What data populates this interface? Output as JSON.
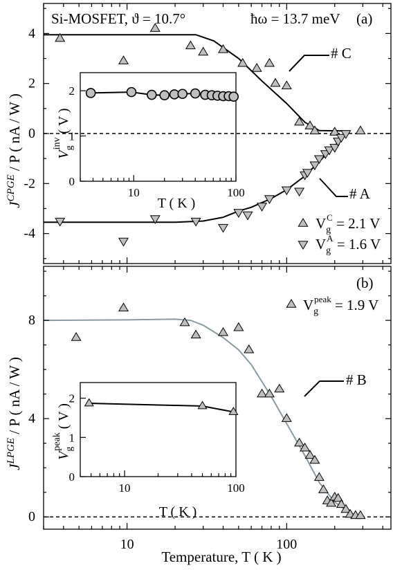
{
  "chart_data": [
    {
      "id": "a",
      "type": "scatter",
      "panel_label": "(a)",
      "title_left": "Si-MOSFET, ϑ = 10.7°",
      "title_right": "ħω = 13.7 meV",
      "ylabel_main": "J",
      "ylabel_super": "CPGE",
      "ylabel_rest": " / P  ( nA / W )",
      "xscale": "log",
      "xlim": [
        3,
        450
      ],
      "ylim": [
        -5.2,
        5.2
      ],
      "yticks": [
        -4,
        -2,
        0,
        2,
        4
      ],
      "reference_line": 0,
      "annotations": [
        {
          "text": "# C",
          "x": 90,
          "y": 3.0
        },
        {
          "text": "# A",
          "x": 140,
          "y": -2.7
        }
      ],
      "series": [
        {
          "name": "V_g^C = 2.1 V",
          "legend_main": "V",
          "legend_sub": "g",
          "legend_sup": "C",
          "legend_rest": " = 2.1 V",
          "marker": "triangle-up",
          "x": [
            3.8,
            9.5,
            15,
            25,
            30,
            40,
            53,
            65,
            78,
            85,
            100,
            120,
            140,
            150,
            200,
            290
          ],
          "y": [
            3.8,
            2.9,
            4.2,
            3.5,
            3.25,
            3.35,
            2.8,
            2.6,
            2.8,
            2.0,
            1.9,
            0.45,
            0.3,
            0.1,
            0.05,
            0.1
          ]
        },
        {
          "name": "V_g^A = 1.6 V",
          "legend_main": "V",
          "legend_sub": "g",
          "legend_sup": "A",
          "legend_rest": " = 1.6 V",
          "marker": "triangle-down",
          "x": [
            3.8,
            9.5,
            15,
            27,
            40,
            50,
            57,
            70,
            78,
            100,
            120,
            130,
            135,
            150,
            160,
            175,
            185,
            200,
            210,
            220,
            235
          ],
          "y": [
            -3.5,
            -4.3,
            -3.4,
            -3.5,
            -3.75,
            -3.15,
            -3.25,
            -2.9,
            -2.6,
            -2.25,
            -2.3,
            -1.65,
            -1.55,
            -1.25,
            -1.0,
            -0.8,
            -0.65,
            -0.55,
            -0.3,
            -0.15,
            0.0
          ]
        }
      ],
      "fits": [
        {
          "x": [
            3,
            10,
            20,
            27,
            35,
            50,
            70,
            100,
            130,
            160,
            250
          ],
          "y": [
            3.95,
            3.95,
            3.95,
            3.95,
            3.7,
            3.0,
            2.1,
            1.2,
            0.45,
            0.12,
            0.1
          ]
        },
        {
          "x": [
            3,
            10,
            20,
            30,
            40,
            50,
            60,
            80,
            100,
            130,
            170,
            210,
            245
          ],
          "y": [
            -3.55,
            -3.55,
            -3.55,
            -3.5,
            -3.35,
            -3.1,
            -2.95,
            -2.6,
            -2.25,
            -1.7,
            -0.95,
            -0.35,
            0.05
          ]
        }
      ],
      "inset": {
        "ylabel_main": "V",
        "ylabel_sub": "g",
        "ylabel_sup": "inv",
        "ylabel_rest": " ( V )",
        "xlabel": "T  ( K )",
        "xscale": "log",
        "xlim": [
          3,
          100
        ],
        "ylim": [
          0,
          2.4
        ],
        "yticks": [
          0,
          1,
          2
        ],
        "xticks": [
          10,
          100
        ],
        "marker": "circle",
        "x": [
          3.8,
          9.5,
          15,
          20,
          25,
          30,
          40,
          50,
          58,
          66,
          75,
          85,
          95
        ],
        "y": [
          1.95,
          1.97,
          1.91,
          1.9,
          1.92,
          1.93,
          1.94,
          1.91,
          1.9,
          1.89,
          1.88,
          1.88,
          1.87
        ]
      }
    },
    {
      "id": "b",
      "type": "scatter",
      "panel_label": "(b)",
      "ylabel_main": "J",
      "ylabel_super": "LPGE",
      "ylabel_rest": " / P  ( nA / W )",
      "xlabel": "Temperature, T  ( K )",
      "xscale": "log",
      "xlim": [
        3,
        450
      ],
      "xticks": [
        10,
        100
      ],
      "ylim": [
        -0.5,
        10.2
      ],
      "yticks": [
        0,
        4,
        8
      ],
      "reference_line": 0,
      "annotations": [
        {
          "text": "# B",
          "x": 190,
          "y": 5.3
        }
      ],
      "series": [
        {
          "name": "V_g^peak = 1.9 V",
          "legend_main": "V",
          "legend_sub": "g",
          "legend_sup": "peak",
          "legend_rest": " = 1.9 V",
          "marker": "triangle-up",
          "x": [
            4.8,
            9.5,
            23,
            27,
            40,
            50,
            58,
            70,
            78,
            90,
            100,
            120,
            130,
            140,
            150,
            160,
            170,
            180,
            190,
            200,
            210,
            220,
            235,
            250,
            270,
            290
          ],
          "y": [
            7.3,
            8.5,
            7.9,
            7.4,
            7.5,
            7.7,
            6.8,
            5.0,
            5.0,
            5.2,
            4.0,
            3.0,
            2.8,
            2.5,
            2.3,
            1.6,
            1.1,
            0.65,
            0.55,
            0.8,
            0.75,
            0.5,
            0.3,
            0.1,
            0.05,
            0.05
          ]
        }
      ],
      "fits": [
        {
          "x": [
            3,
            10,
            20,
            25,
            30,
            40,
            50,
            60,
            80,
            100,
            130,
            160,
            200,
            250,
            300
          ],
          "y": [
            8.0,
            8.02,
            8.05,
            8.0,
            7.8,
            7.3,
            6.8,
            6.2,
            4.9,
            3.8,
            2.5,
            1.4,
            0.6,
            0.15,
            0.02
          ]
        }
      ],
      "inset": {
        "ylabel_main": "V",
        "ylabel_sub": "g",
        "ylabel_sup": "peak",
        "ylabel_rest": " ( V )",
        "xlabel": "T  ( K )",
        "xscale": "log",
        "xlim": [
          4,
          100
        ],
        "ylim": [
          0,
          2.4
        ],
        "yticks": [
          0,
          1,
          2
        ],
        "xticks": [
          10,
          100
        ],
        "marker": "triangle-up",
        "x": [
          4.8,
          50,
          95
        ],
        "y": [
          1.87,
          1.8,
          1.65
        ]
      }
    }
  ]
}
